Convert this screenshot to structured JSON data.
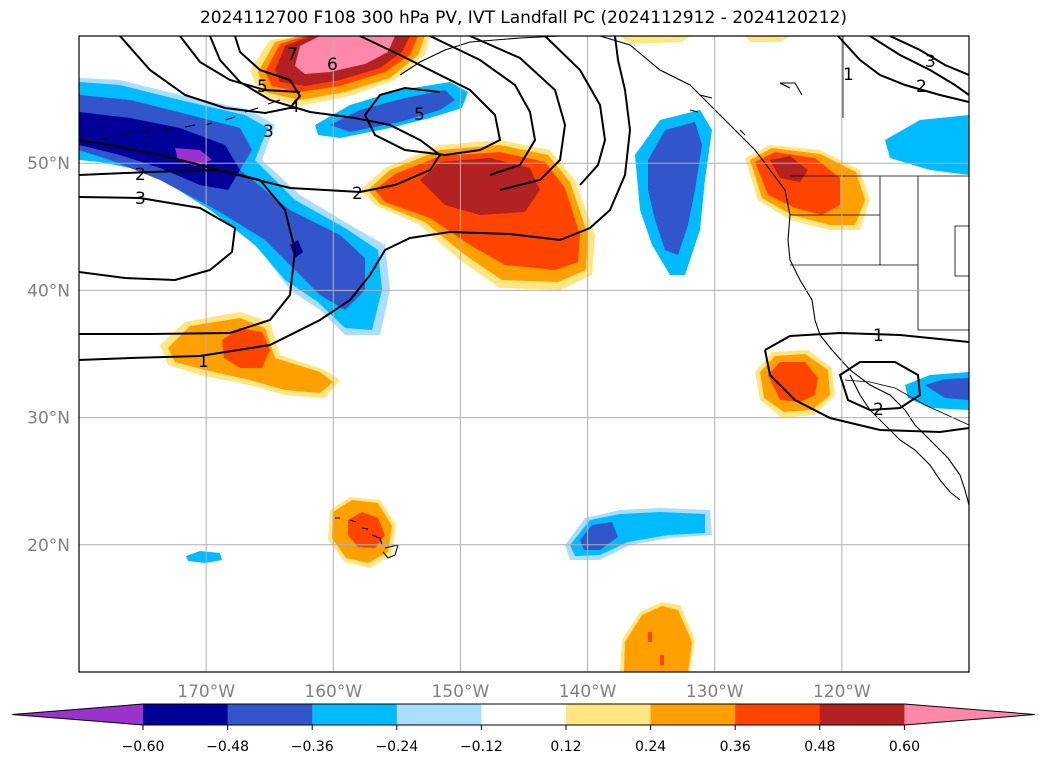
{
  "title": "2024112700 F108 300 hPa PV, IVT Landfall PC (2024112912 - 2024120212)",
  "map": {
    "lon_range": [
      -180,
      -110
    ],
    "lat_range": [
      10,
      60
    ],
    "lon_ticks": [
      {
        "value": -170,
        "label": "170°W"
      },
      {
        "value": -160,
        "label": "160°W"
      },
      {
        "value": -150,
        "label": "150°W"
      },
      {
        "value": -140,
        "label": "140°W"
      },
      {
        "value": -130,
        "label": "130°W"
      },
      {
        "value": -120,
        "label": "120°W"
      }
    ],
    "lat_ticks": [
      {
        "value": 20,
        "label": "20°N"
      },
      {
        "value": 30,
        "label": "30°N"
      },
      {
        "value": 40,
        "label": "40°N"
      },
      {
        "value": 50,
        "label": "50°N"
      }
    ],
    "gridlines": true,
    "contour_labels": [
      "1",
      "2",
      "3",
      "4",
      "5",
      "6",
      "7"
    ]
  },
  "colorbar": {
    "levels": [
      "−0.60",
      "−0.48",
      "−0.36",
      "−0.24",
      "−0.12",
      "0.12",
      "0.24",
      "0.36",
      "0.48",
      "0.60"
    ],
    "colors": [
      "#9933cc",
      "#000099",
      "#3355cc",
      "#00bbff",
      "#aaddff",
      "#ffffff",
      "#ffe680",
      "#ff9f00",
      "#ff4400",
      "#b22222",
      "#ff88aa"
    ],
    "extend": "both"
  }
}
